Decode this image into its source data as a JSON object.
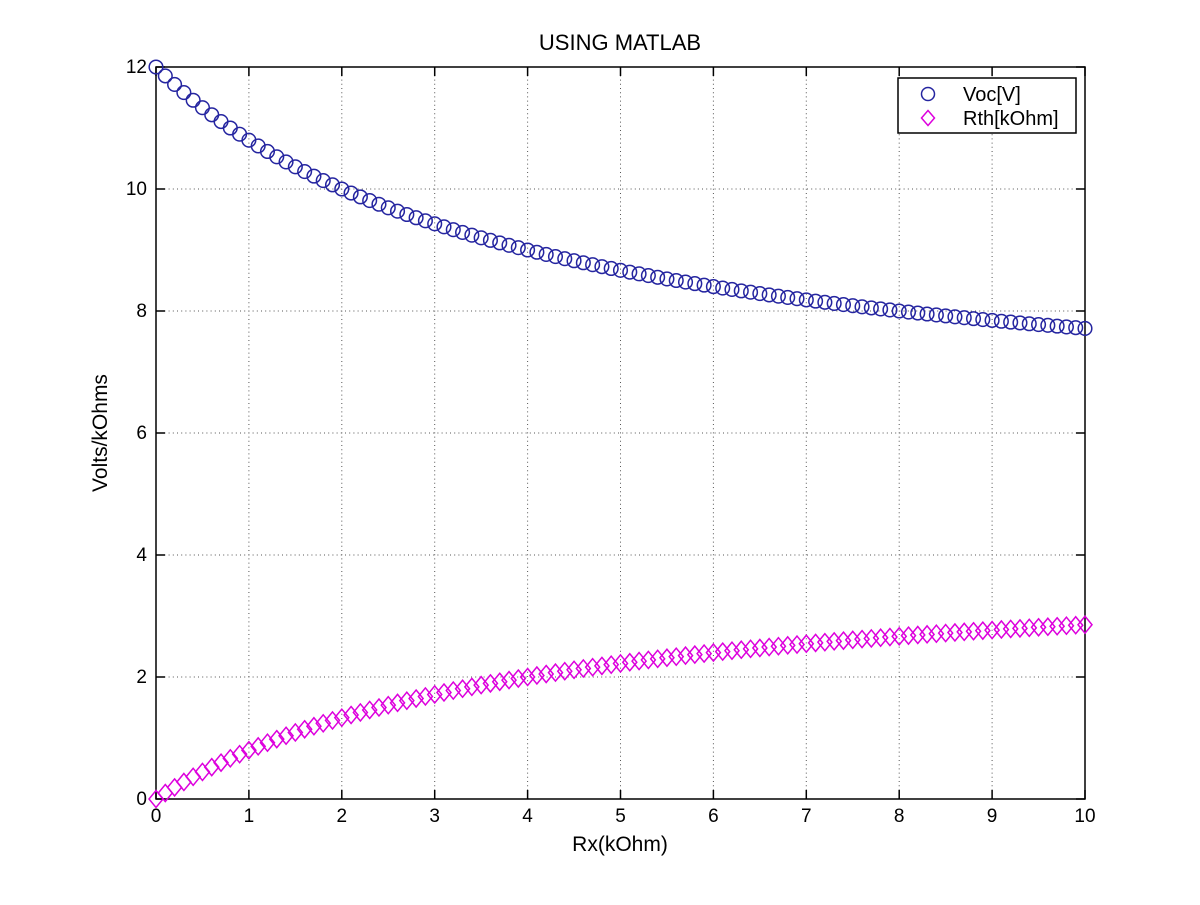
{
  "figure": {
    "title": "USING MATLAB",
    "xlabel": "Rx(kOhm)",
    "ylabel": "Volts/kOhms"
  },
  "legend": {
    "position": "top-right",
    "items": [
      {
        "label": "Voc[V]",
        "marker": "circle",
        "color": "#2525a0"
      },
      {
        "label": "Rth[kOhm]",
        "marker": "diamond",
        "color": "#dd00dd"
      }
    ]
  },
  "colors": {
    "axis": "#000000",
    "grid": "#555555",
    "background": "#ffffff",
    "voc_series": "#2525a0",
    "rth_series": "#dd00dd"
  },
  "chart_data": {
    "type": "scatter",
    "title": "USING MATLAB",
    "xlabel": "Rx(kOhm)",
    "ylabel": "Volts/kOhms",
    "xlim": [
      0,
      10
    ],
    "ylim": [
      0,
      12
    ],
    "x_ticks": [
      0,
      1,
      2,
      3,
      4,
      5,
      6,
      7,
      8,
      9,
      10
    ],
    "y_ticks": [
      0,
      2,
      4,
      6,
      8,
      10,
      12
    ],
    "grid": "dotted",
    "legend_position": "top-right",
    "x": [
      0,
      0.1,
      0.2,
      0.3,
      0.4,
      0.5,
      0.6,
      0.7,
      0.8,
      0.9,
      1,
      1.1,
      1.2,
      1.3,
      1.4,
      1.5,
      1.6,
      1.7,
      1.8,
      1.9,
      2,
      2.1,
      2.2,
      2.3,
      2.4,
      2.5,
      2.6,
      2.7,
      2.8,
      2.9,
      3,
      3.1,
      3.2,
      3.3,
      3.4,
      3.5,
      3.6,
      3.7,
      3.8,
      3.9,
      4,
      4.1,
      4.2,
      4.3,
      4.4,
      4.5,
      4.6,
      4.7,
      4.8,
      4.9,
      5,
      5.1,
      5.2,
      5.3,
      5.4,
      5.5,
      5.6,
      5.7,
      5.8,
      5.9,
      6,
      6.1,
      6.2,
      6.3,
      6.4,
      6.5,
      6.6,
      6.7,
      6.8,
      6.9,
      7,
      7.1,
      7.2,
      7.3,
      7.4,
      7.5,
      7.6,
      7.7,
      7.8,
      7.9,
      8,
      8.1,
      8.2,
      8.3,
      8.4,
      8.5,
      8.6,
      8.7,
      8.8,
      8.9,
      9,
      9.1,
      9.2,
      9.3,
      9.4,
      9.5,
      9.6,
      9.7,
      9.8,
      9.9,
      10
    ],
    "series": [
      {
        "name": "Voc[V]",
        "marker": "circle",
        "color": "#2525a0",
        "values": [
          12,
          11.854,
          11.714,
          11.581,
          11.455,
          11.333,
          11.217,
          11.106,
          11,
          10.898,
          10.8,
          10.706,
          10.615,
          10.528,
          10.444,
          10.364,
          10.286,
          10.211,
          10.138,
          10.068,
          10,
          9.934,
          9.871,
          9.81,
          9.75,
          9.692,
          9.636,
          9.582,
          9.529,
          9.478,
          9.429,
          9.38,
          9.333,
          9.288,
          9.243,
          9.2,
          9.158,
          9.117,
          9.077,
          9.038,
          9,
          8.963,
          8.927,
          8.892,
          8.857,
          8.824,
          8.791,
          8.759,
          8.727,
          8.697,
          8.667,
          8.637,
          8.609,
          8.581,
          8.553,
          8.526,
          8.5,
          8.474,
          8.449,
          8.424,
          8.4,
          8.376,
          8.353,
          8.33,
          8.308,
          8.286,
          8.264,
          8.243,
          8.222,
          8.202,
          8.182,
          8.162,
          8.143,
          8.124,
          8.105,
          8.087,
          8.069,
          8.051,
          8.034,
          8.017,
          8,
          7.983,
          7.967,
          7.951,
          7.935,
          7.92,
          7.905,
          7.89,
          7.875,
          7.86,
          7.846,
          7.832,
          7.818,
          7.805,
          7.791,
          7.778,
          7.765,
          7.752,
          7.739,
          7.727,
          7.714
        ]
      },
      {
        "name": "Rth[kOhm]",
        "marker": "diamond",
        "color": "#dd00dd",
        "values": [
          0,
          0.098,
          0.19,
          0.279,
          0.364,
          0.444,
          0.522,
          0.596,
          0.667,
          0.735,
          0.8,
          0.863,
          0.923,
          0.981,
          1.037,
          1.091,
          1.143,
          1.193,
          1.241,
          1.288,
          1.333,
          1.377,
          1.419,
          1.46,
          1.5,
          1.538,
          1.576,
          1.612,
          1.647,
          1.681,
          1.714,
          1.746,
          1.778,
          1.808,
          1.838,
          1.867,
          1.895,
          1.922,
          1.949,
          1.975,
          2,
          2.025,
          2.049,
          2.072,
          2.095,
          2.118,
          2.14,
          2.161,
          2.182,
          2.202,
          2.222,
          2.242,
          2.261,
          2.28,
          2.298,
          2.316,
          2.333,
          2.351,
          2.367,
          2.384,
          2.4,
          2.416,
          2.431,
          2.447,
          2.462,
          2.476,
          2.491,
          2.505,
          2.519,
          2.532,
          2.545,
          2.559,
          2.571,
          2.584,
          2.596,
          2.609,
          2.621,
          2.632,
          2.644,
          2.655,
          2.667,
          2.678,
          2.689,
          2.699,
          2.71,
          2.72,
          2.73,
          2.74,
          2.75,
          2.76,
          2.769,
          2.779,
          2.788,
          2.797,
          2.806,
          2.815,
          2.824,
          2.832,
          2.841,
          2.849,
          2.857
        ]
      }
    ]
  }
}
